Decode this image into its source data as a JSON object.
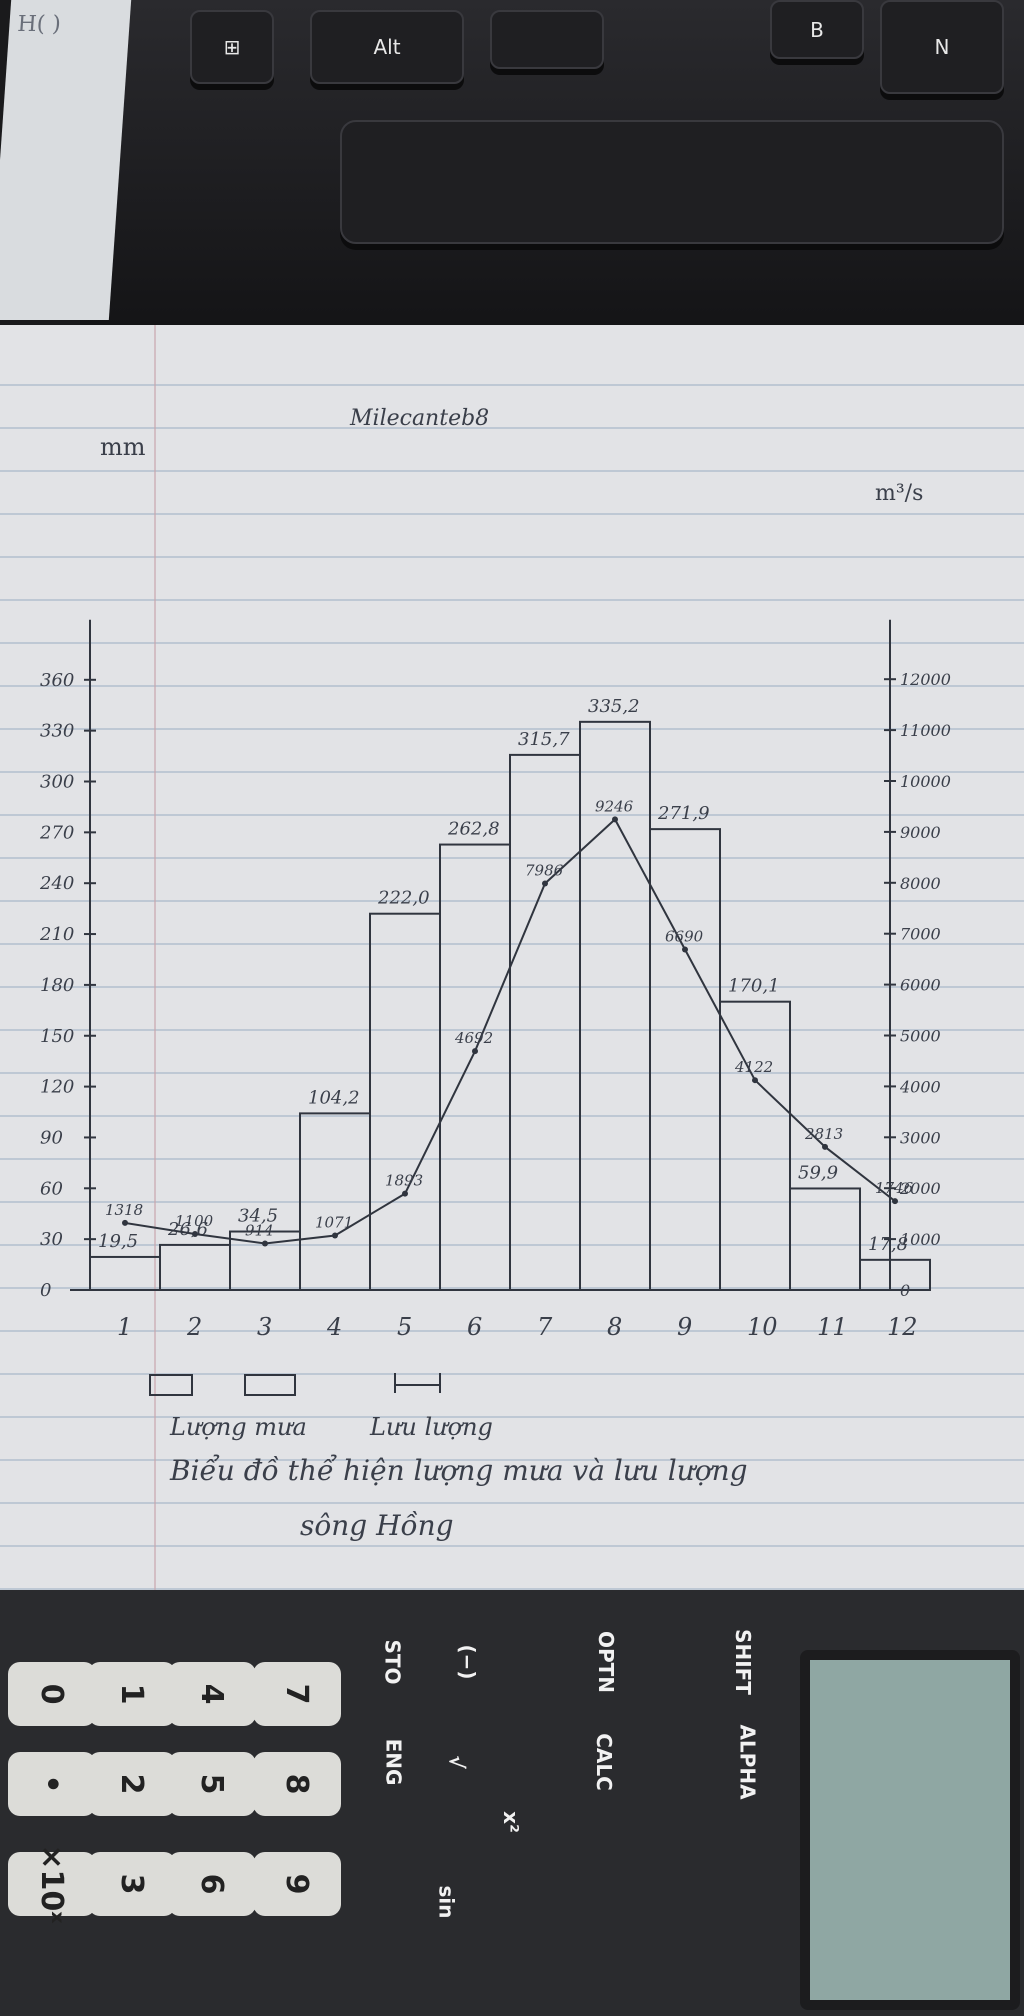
{
  "keyboard": {
    "win_key": "⊞",
    "alt_key": "Alt",
    "b_key": "B",
    "n_key": "N"
  },
  "scrap_text": "H(  )",
  "chart_data": {
    "type": "bar+line",
    "title": "Biểu đồ thể hiện lượng mưa và lưu lượng sông Hồng",
    "header_note": "Milecanteb8",
    "categories": [
      "1",
      "2",
      "3",
      "4",
      "5",
      "6",
      "7",
      "8",
      "9",
      "10",
      "11",
      "12"
    ],
    "left_axis": {
      "unit": "mm",
      "ticks": [
        "0",
        "30",
        "60",
        "90",
        "120",
        "150",
        "180",
        "210",
        "240",
        "270",
        "300",
        "330",
        "360"
      ],
      "ylim": [
        0,
        360
      ]
    },
    "right_axis": {
      "unit": "m³/s",
      "ticks": [
        "0",
        "1000",
        "2000",
        "3000",
        "4000",
        "5000",
        "6000",
        "7000",
        "8000",
        "9000",
        "10000",
        "11000",
        "12000"
      ],
      "ylim": [
        0,
        12000
      ]
    },
    "series": [
      {
        "name": "Lượng mưa",
        "type": "bar",
        "axis": "left",
        "values": [
          19.5,
          26.6,
          34.5,
          104.2,
          222.0,
          262.8,
          315.7,
          335.2,
          271.9,
          170.1,
          59.9,
          17.8
        ],
        "labels": [
          "19,5",
          "26,6",
          "34,5",
          "104,2",
          "222,0",
          "262,8",
          "315,7",
          "335,2",
          "271,9",
          "170,1",
          "59,9",
          "17,8"
        ]
      },
      {
        "name": "Lưu lượng",
        "type": "line",
        "axis": "right",
        "values": [
          1318,
          1100,
          914,
          1071,
          1893,
          4692,
          7986,
          9246,
          6690,
          4122,
          2813,
          1746
        ],
        "labels": [
          "1318",
          "1100",
          "914",
          "1071",
          "1893",
          "4692",
          "7986",
          "9246",
          "6690",
          "4122",
          "2813",
          "1746"
        ]
      }
    ],
    "legend": [
      "Lượng mưa",
      "Lưu lượng"
    ],
    "legend_placement": "bottom"
  },
  "calculator": {
    "digits": [
      "0",
      "1",
      "4",
      "7",
      "•",
      "2",
      "5",
      "8",
      "×10ˣ",
      "3",
      "6",
      "9"
    ],
    "functions": [
      "STO",
      "ENG",
      "OPTN",
      "CALC",
      "(−)",
      "√",
      "x²",
      "sin",
      "SHIFT",
      "ALPHA"
    ]
  }
}
